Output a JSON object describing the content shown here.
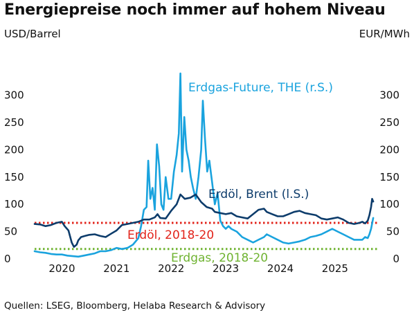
{
  "header": {
    "title": "Energiepreise noch immer auf hohem Niveau"
  },
  "footer": {
    "source": "Quellen: LSEG, Bloomberg, Helaba Research & Advisory"
  },
  "colors": {
    "brent": "#0d3c6b",
    "gas": "#1aa3de",
    "brent_ref": "#e2231a",
    "gas_ref": "#6fb331",
    "text": "#111111"
  },
  "chart_data": {
    "type": "line",
    "y_left_label": "USD/Barrel",
    "y_right_label": "EUR/MWh",
    "y_left_lim": [
      0,
      340
    ],
    "y_right_lim": [
      0,
      340
    ],
    "y_left_ticks": [
      0,
      50,
      100,
      150,
      200,
      250,
      300
    ],
    "y_right_ticks": [
      0,
      50,
      100,
      150,
      200,
      250,
      300
    ],
    "x_lim": [
      2019.5,
      2025.8
    ],
    "x_ticks": [
      {
        "label": "2020",
        "x": 2020.0
      },
      {
        "label": "2021",
        "x": 2021.0
      },
      {
        "label": "2022",
        "x": 2022.0
      },
      {
        "label": "2023",
        "x": 2023.0
      },
      {
        "label": "2024",
        "x": 2024.0
      },
      {
        "label": "2025",
        "x": 2025.0
      }
    ],
    "grid": false,
    "series": [
      {
        "name": "Erdöl, Brent (l.S.)",
        "axis": "left",
        "x": [
          2019.5,
          2019.6,
          2019.7,
          2019.8,
          2019.9,
          2020.0,
          2020.05,
          2020.12,
          2020.18,
          2020.22,
          2020.27,
          2020.3,
          2020.35,
          2020.42,
          2020.5,
          2020.6,
          2020.7,
          2020.8,
          2020.9,
          2021.0,
          2021.1,
          2021.2,
          2021.3,
          2021.4,
          2021.5,
          2021.6,
          2021.7,
          2021.75,
          2021.8,
          2021.9,
          2022.0,
          2022.1,
          2022.17,
          2022.25,
          2022.35,
          2022.45,
          2022.55,
          2022.65,
          2022.75,
          2022.8,
          2022.9,
          2023.0,
          2023.1,
          2023.2,
          2023.3,
          2023.4,
          2023.5,
          2023.6,
          2023.7,
          2023.75,
          2023.85,
          2023.95,
          2024.05,
          2024.15,
          2024.25,
          2024.35,
          2024.45,
          2024.55,
          2024.65,
          2024.75,
          2024.85,
          2024.95,
          2025.05,
          2025.15,
          2025.25,
          2025.35,
          2025.45,
          2025.5,
          2025.55,
          2025.6,
          2025.63,
          2025.66,
          2025.68,
          2025.7
        ],
        "y": [
          64,
          63,
          60,
          62,
          66,
          68,
          60,
          52,
          30,
          22,
          26,
          34,
          40,
          42,
          44,
          45,
          42,
          40,
          46,
          52,
          62,
          64,
          66,
          68,
          72,
          72,
          76,
          82,
          75,
          74,
          88,
          100,
          118,
          110,
          112,
          118,
          104,
          95,
          92,
          86,
          84,
          82,
          84,
          78,
          76,
          74,
          82,
          90,
          92,
          86,
          82,
          78,
          78,
          82,
          86,
          88,
          84,
          82,
          80,
          74,
          72,
          74,
          76,
          72,
          66,
          64,
          66,
          68,
          65,
          70,
          80,
          95,
          110,
          105
        ]
      },
      {
        "name": "Erdgas-Future, THE (r.S.)",
        "axis": "right",
        "x": [
          2019.5,
          2019.6,
          2019.7,
          2019.8,
          2019.9,
          2020.0,
          2020.1,
          2020.2,
          2020.3,
          2020.4,
          2020.5,
          2020.6,
          2020.7,
          2020.8,
          2020.9,
          2021.0,
          2021.1,
          2021.2,
          2021.3,
          2021.4,
          2021.45,
          2021.5,
          2021.55,
          2021.58,
          2021.62,
          2021.66,
          2021.7,
          2021.74,
          2021.78,
          2021.82,
          2021.86,
          2021.9,
          2021.95,
          2022.0,
          2022.05,
          2022.1,
          2022.14,
          2022.17,
          2022.2,
          2022.24,
          2022.28,
          2022.32,
          2022.36,
          2022.4,
          2022.45,
          2022.5,
          2022.55,
          2022.58,
          2022.62,
          2022.66,
          2022.7,
          2022.75,
          2022.8,
          2022.85,
          2022.9,
          2022.95,
          2023.0,
          2023.05,
          2023.1,
          2023.2,
          2023.3,
          2023.4,
          2023.5,
          2023.6,
          2023.7,
          2023.75,
          2023.85,
          2023.95,
          2024.05,
          2024.15,
          2024.25,
          2024.35,
          2024.45,
          2024.55,
          2024.65,
          2024.75,
          2024.85,
          2024.95,
          2025.05,
          2025.15,
          2025.25,
          2025.35,
          2025.45,
          2025.5,
          2025.55,
          2025.6,
          2025.63,
          2025.66,
          2025.7
        ],
        "y": [
          14,
          12,
          11,
          9,
          8,
          8,
          6,
          5,
          4,
          6,
          8,
          10,
          14,
          14,
          16,
          20,
          18,
          20,
          26,
          38,
          60,
          90,
          95,
          180,
          110,
          130,
          90,
          210,
          170,
          100,
          90,
          150,
          110,
          110,
          160,
          190,
          230,
          340,
          160,
          260,
          200,
          180,
          150,
          130,
          110,
          150,
          200,
          290,
          220,
          160,
          180,
          140,
          100,
          120,
          70,
          60,
          55,
          60,
          55,
          50,
          40,
          35,
          30,
          35,
          40,
          45,
          40,
          35,
          30,
          28,
          30,
          32,
          35,
          40,
          42,
          45,
          50,
          55,
          50,
          45,
          40,
          35,
          35,
          35,
          40,
          38,
          45,
          55,
          75
        ]
      }
    ],
    "reference_lines": [
      {
        "name": "Erdöl, 2018-20",
        "axis": "left",
        "y": 66
      },
      {
        "name": "Erdgas, 2018-20",
        "axis": "right",
        "y": 18
      }
    ]
  }
}
